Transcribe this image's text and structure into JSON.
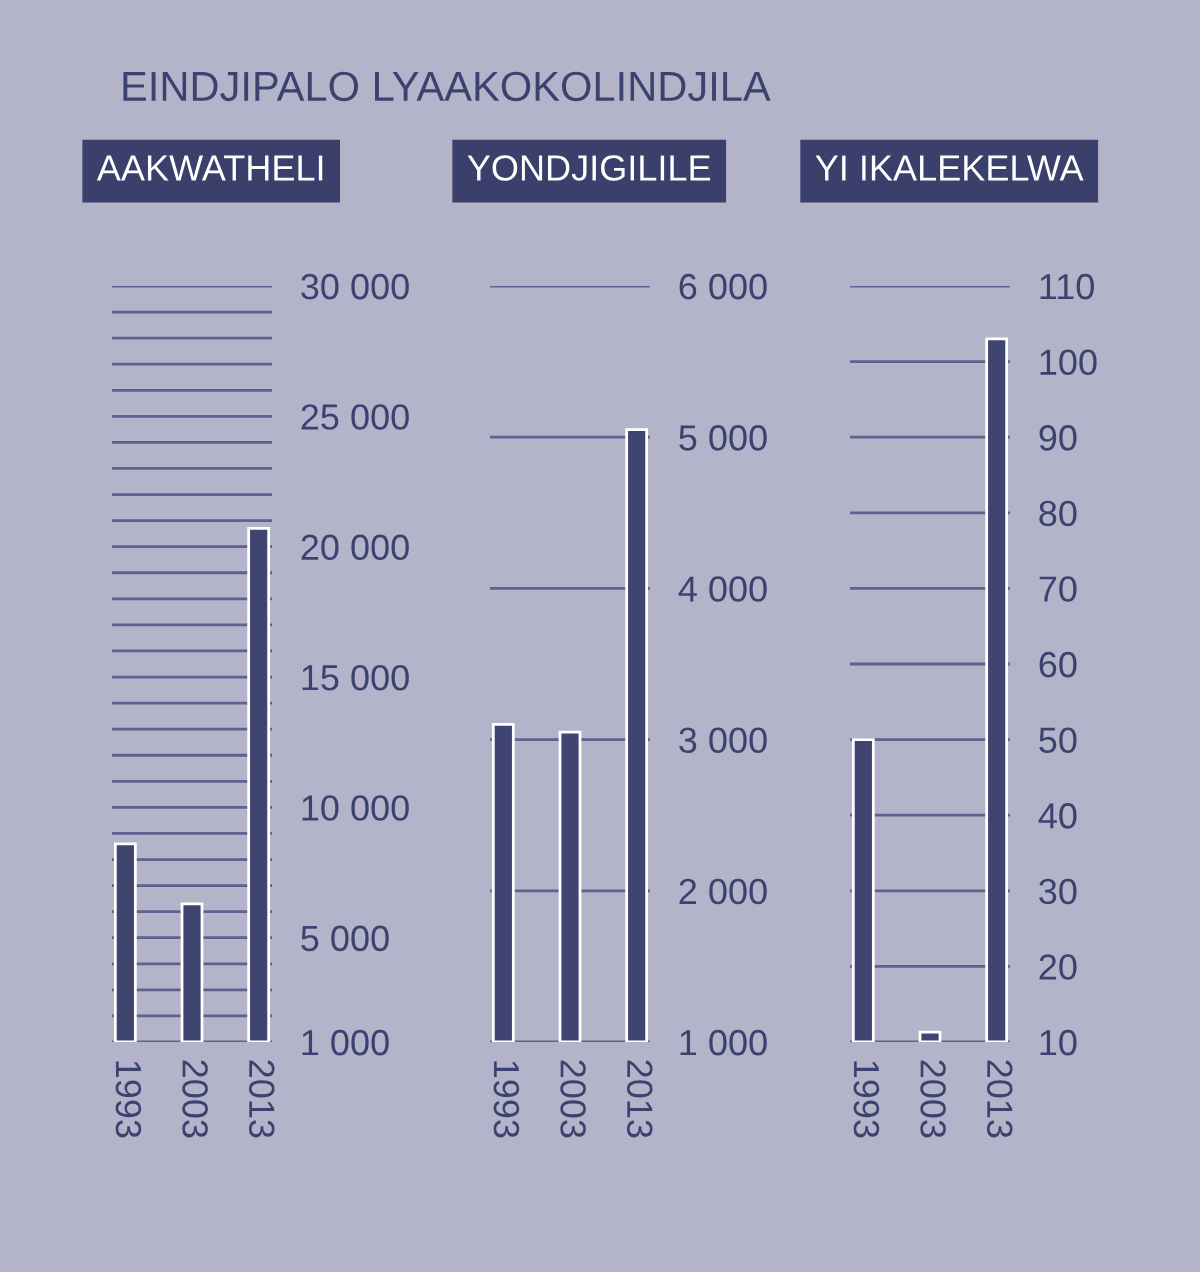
{
  "chart_data": [
    {
      "type": "bar",
      "title": "AAKWATHELI",
      "categories": [
        "1993",
        "2003",
        "2013"
      ],
      "values": [
        8600,
        6300,
        20700
      ],
      "color": "#3f4570",
      "ylim": [
        1000,
        30000
      ],
      "yticks": [
        {
          "value": 1000,
          "label": "1 000"
        },
        {
          "value": 2000,
          "label": null
        },
        {
          "value": 3000,
          "label": null
        },
        {
          "value": 4000,
          "label": null
        },
        {
          "value": 5000,
          "label": "5 000"
        },
        {
          "value": 6000,
          "label": null
        },
        {
          "value": 7000,
          "label": null
        },
        {
          "value": 8000,
          "label": null
        },
        {
          "value": 9000,
          "label": null
        },
        {
          "value": 10000,
          "label": "10 000"
        },
        {
          "value": 11000,
          "label": null
        },
        {
          "value": 12000,
          "label": null
        },
        {
          "value": 13000,
          "label": null
        },
        {
          "value": 14000,
          "label": null
        },
        {
          "value": 15000,
          "label": "15 000"
        },
        {
          "value": 16000,
          "label": null
        },
        {
          "value": 17000,
          "label": null
        },
        {
          "value": 18000,
          "label": null
        },
        {
          "value": 19000,
          "label": null
        },
        {
          "value": 20000,
          "label": "20 000"
        },
        {
          "value": 21000,
          "label": null
        },
        {
          "value": 22000,
          "label": null
        },
        {
          "value": 23000,
          "label": null
        },
        {
          "value": 24000,
          "label": null
        },
        {
          "value": 25000,
          "label": "25 000"
        },
        {
          "value": 26000,
          "label": null
        },
        {
          "value": 27000,
          "label": null
        },
        {
          "value": 28000,
          "label": null
        },
        {
          "value": 29000,
          "label": null
        },
        {
          "value": 30000,
          "label": "30 000"
        }
      ],
      "grid": "y",
      "annotations": [
        "EINDJIPALO LYAAKOKOLINDJILA"
      ]
    },
    {
      "type": "bar",
      "title": "YONDJIGILILE",
      "categories": [
        "1993",
        "2003",
        "2013"
      ],
      "values": [
        3100,
        3050,
        5050
      ],
      "color": "#3f4570",
      "ylim": [
        1000,
        6000
      ],
      "yticks": [
        {
          "value": 1000,
          "label": "1 000"
        },
        {
          "value": 2000,
          "label": "2 000"
        },
        {
          "value": 3000,
          "label": "3 000"
        },
        {
          "value": 4000,
          "label": "4 000"
        },
        {
          "value": 5000,
          "label": "5 000"
        },
        {
          "value": 6000,
          "label": "6 000"
        }
      ],
      "grid": "y"
    },
    {
      "type": "bar",
      "title": "YI IKALEKELWA",
      "categories": [
        "1993",
        "2003",
        "2013"
      ],
      "values": [
        50,
        11.3,
        103
      ],
      "color": "#3f4570",
      "ylim": [
        10,
        110
      ],
      "yticks": [
        10,
        20,
        30,
        40,
        50,
        60,
        70,
        80,
        90,
        100,
        110
      ],
      "grid": "y"
    }
  ]
}
